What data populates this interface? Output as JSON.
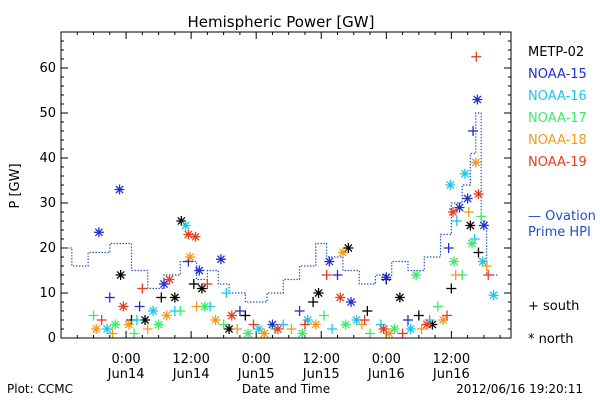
{
  "chart_data": {
    "type": "scatter",
    "title": "Hemispheric Power [GW]",
    "ylabel": "P [GW]",
    "xlabel": "Date and Time",
    "ylim": [
      0,
      68
    ],
    "yticks": [
      0,
      10,
      20,
      30,
      40,
      50,
      60
    ],
    "xlim": [
      -12,
      71
    ],
    "xticks": [
      {
        "x": 0,
        "label": "0:00",
        "date": "Jun14"
      },
      {
        "x": 12,
        "label": "12:00",
        "date": "Jun14"
      },
      {
        "x": 24,
        "label": "0:00",
        "date": "Jun15"
      },
      {
        "x": 36,
        "label": "12:00",
        "date": "Jun15"
      },
      {
        "x": 48,
        "label": "0:00",
        "date": "Jun16"
      },
      {
        "x": 60,
        "label": "12:00",
        "date": "Jun16"
      }
    ],
    "markers": {
      "south": "+",
      "north": "*"
    },
    "series": [
      {
        "name": "METP-02",
        "color": "#000000",
        "points": [
          {
            "x": -1,
            "y": 14,
            "m": "*"
          },
          {
            "x": 1,
            "y": 4,
            "m": "+"
          },
          {
            "x": 3.5,
            "y": 4,
            "m": "*"
          },
          {
            "x": 6.5,
            "y": 9,
            "m": "+"
          },
          {
            "x": 9,
            "y": 9,
            "m": "*"
          },
          {
            "x": 10.2,
            "y": 26,
            "m": "*"
          },
          {
            "x": 12.5,
            "y": 12,
            "m": "+"
          },
          {
            "x": 14,
            "y": 11,
            "m": "*"
          },
          {
            "x": 19,
            "y": 2,
            "m": "*"
          },
          {
            "x": 22,
            "y": 5,
            "m": "+"
          },
          {
            "x": 34.5,
            "y": 8,
            "m": "+"
          },
          {
            "x": 35.5,
            "y": 10,
            "m": "*"
          },
          {
            "x": 41,
            "y": 20,
            "m": "*"
          },
          {
            "x": 44.5,
            "y": 6,
            "m": "+"
          },
          {
            "x": 48,
            "y": 13,
            "m": "+"
          },
          {
            "x": 50.5,
            "y": 9,
            "m": "*"
          },
          {
            "x": 54,
            "y": 5,
            "m": "+"
          },
          {
            "x": 56.5,
            "y": 3,
            "m": "*"
          },
          {
            "x": 60,
            "y": 11,
            "m": "+"
          },
          {
            "x": 63.5,
            "y": 25,
            "m": "*"
          },
          {
            "x": 65,
            "y": 19,
            "m": "+"
          }
        ]
      },
      {
        "name": "NOAA-15",
        "color": "#1f2fd0",
        "points": [
          {
            "x": -5,
            "y": 23.5,
            "m": "*"
          },
          {
            "x": -3,
            "y": 9,
            "m": "+"
          },
          {
            "x": -1.2,
            "y": 33,
            "m": "*"
          },
          {
            "x": 2.5,
            "y": 7,
            "m": "+"
          },
          {
            "x": 7,
            "y": 12,
            "m": "*"
          },
          {
            "x": 11.5,
            "y": 17,
            "m": "+"
          },
          {
            "x": 13.5,
            "y": 15,
            "m": "*"
          },
          {
            "x": 17.5,
            "y": 17.5,
            "m": "*"
          },
          {
            "x": 21,
            "y": 6,
            "m": "+"
          },
          {
            "x": 27,
            "y": 3,
            "m": "*"
          },
          {
            "x": 32,
            "y": 6,
            "m": "+"
          },
          {
            "x": 37.5,
            "y": 17,
            "m": "*"
          },
          {
            "x": 39,
            "y": 14,
            "m": "+"
          },
          {
            "x": 41.5,
            "y": 8,
            "m": "*"
          },
          {
            "x": 48,
            "y": 13.5,
            "m": "*"
          },
          {
            "x": 52,
            "y": 4,
            "m": "+"
          },
          {
            "x": 59.5,
            "y": 20,
            "m": "+"
          },
          {
            "x": 61.5,
            "y": 29,
            "m": "*"
          },
          {
            "x": 63,
            "y": 31,
            "m": "*"
          },
          {
            "x": 64,
            "y": 46,
            "m": "+"
          },
          {
            "x": 64.8,
            "y": 53,
            "m": "*"
          },
          {
            "x": 66,
            "y": 25,
            "m": "*"
          }
        ]
      },
      {
        "name": "NOAA-16",
        "color": "#17c8e8",
        "points": [
          {
            "x": -3.5,
            "y": 2,
            "m": "*"
          },
          {
            "x": 2,
            "y": 4,
            "m": "+"
          },
          {
            "x": 5,
            "y": 6,
            "m": "*"
          },
          {
            "x": 9,
            "y": 6,
            "m": "+"
          },
          {
            "x": 11,
            "y": 25,
            "m": "*"
          },
          {
            "x": 15.5,
            "y": 7,
            "m": "+"
          },
          {
            "x": 18.5,
            "y": 10,
            "m": "+"
          },
          {
            "x": 24.5,
            "y": 2,
            "m": "*"
          },
          {
            "x": 29,
            "y": 3,
            "m": "+"
          },
          {
            "x": 33.5,
            "y": 4,
            "m": "*"
          },
          {
            "x": 38,
            "y": 2,
            "m": "+"
          },
          {
            "x": 42.5,
            "y": 4,
            "m": "*"
          },
          {
            "x": 47,
            "y": 3,
            "m": "+"
          },
          {
            "x": 52.5,
            "y": 2,
            "m": "*"
          },
          {
            "x": 56,
            "y": 4,
            "m": "+"
          },
          {
            "x": 59.8,
            "y": 34,
            "m": "*"
          },
          {
            "x": 61,
            "y": 26,
            "m": "+"
          },
          {
            "x": 62.5,
            "y": 36.5,
            "m": "*"
          },
          {
            "x": 64.3,
            "y": 22,
            "m": "+"
          },
          {
            "x": 65.8,
            "y": 17,
            "m": "*"
          },
          {
            "x": 67.8,
            "y": 9.5,
            "m": "*"
          }
        ]
      },
      {
        "name": "NOAA-17",
        "color": "#3ee86a",
        "points": [
          {
            "x": -6,
            "y": 5,
            "m": "+"
          },
          {
            "x": -2,
            "y": 3,
            "m": "*"
          },
          {
            "x": 1.5,
            "y": 1,
            "m": "+"
          },
          {
            "x": 6,
            "y": 3,
            "m": "*"
          },
          {
            "x": 10,
            "y": 6,
            "m": "+"
          },
          {
            "x": 14.5,
            "y": 7,
            "m": "*"
          },
          {
            "x": 18,
            "y": 3,
            "m": "+"
          },
          {
            "x": 22.5,
            "y": 1,
            "m": "*"
          },
          {
            "x": 27.5,
            "y": 2,
            "m": "+"
          },
          {
            "x": 32.5,
            "y": 1,
            "m": "*"
          },
          {
            "x": 36.5,
            "y": 5,
            "m": "+"
          },
          {
            "x": 40.5,
            "y": 3,
            "m": "*"
          },
          {
            "x": 45,
            "y": 1,
            "m": "+"
          },
          {
            "x": 49.5,
            "y": 2,
            "m": "*"
          },
          {
            "x": 53.5,
            "y": 14,
            "m": "*"
          },
          {
            "x": 57.5,
            "y": 7,
            "m": "+"
          },
          {
            "x": 60.5,
            "y": 17,
            "m": "*"
          },
          {
            "x": 62,
            "y": 14,
            "m": "+"
          },
          {
            "x": 63.8,
            "y": 21,
            "m": "*"
          },
          {
            "x": 65.5,
            "y": 27,
            "m": "+"
          }
        ]
      },
      {
        "name": "NOAA-18",
        "color": "#f09a1e",
        "points": [
          {
            "x": -5.5,
            "y": 2,
            "m": "*"
          },
          {
            "x": -2.5,
            "y": 1,
            "m": "+"
          },
          {
            "x": 0.5,
            "y": 3,
            "m": "*"
          },
          {
            "x": 4,
            "y": 2,
            "m": "+"
          },
          {
            "x": 7.5,
            "y": 5,
            "m": "*"
          },
          {
            "x": 11.8,
            "y": 18,
            "m": "*"
          },
          {
            "x": 13,
            "y": 7,
            "m": "+"
          },
          {
            "x": 16.5,
            "y": 4,
            "m": "*"
          },
          {
            "x": 20.5,
            "y": 2,
            "m": "+"
          },
          {
            "x": 25.5,
            "y": 1,
            "m": "*"
          },
          {
            "x": 30.5,
            "y": 2,
            "m": "+"
          },
          {
            "x": 35,
            "y": 3,
            "m": "*"
          },
          {
            "x": 40,
            "y": 19,
            "m": "*"
          },
          {
            "x": 43.5,
            "y": 3,
            "m": "+"
          },
          {
            "x": 48.5,
            "y": 1,
            "m": "*"
          },
          {
            "x": 54.5,
            "y": 2,
            "m": "+"
          },
          {
            "x": 58.5,
            "y": 4,
            "m": "*"
          },
          {
            "x": 60.8,
            "y": 14,
            "m": "+"
          },
          {
            "x": 63.2,
            "y": 28,
            "m": "+"
          },
          {
            "x": 64.5,
            "y": 39,
            "m": "*"
          },
          {
            "x": 66.5,
            "y": 16,
            "m": "+"
          }
        ]
      },
      {
        "name": "NOAA-19",
        "color": "#e83c1e",
        "points": [
          {
            "x": -4.5,
            "y": 4,
            "m": "+"
          },
          {
            "x": -0.5,
            "y": 7,
            "m": "*"
          },
          {
            "x": 3,
            "y": 11,
            "m": "+"
          },
          {
            "x": 8,
            "y": 13,
            "m": "*"
          },
          {
            "x": 11.5,
            "y": 23,
            "m": "*"
          },
          {
            "x": 12.8,
            "y": 22.5,
            "m": "*"
          },
          {
            "x": 15,
            "y": 12,
            "m": "+"
          },
          {
            "x": 19.5,
            "y": 5,
            "m": "*"
          },
          {
            "x": 23.5,
            "y": 3,
            "m": "+"
          },
          {
            "x": 28,
            "y": 2,
            "m": "*"
          },
          {
            "x": 33,
            "y": 3,
            "m": "+"
          },
          {
            "x": 37,
            "y": 14,
            "m": "+"
          },
          {
            "x": 39.5,
            "y": 9,
            "m": "*"
          },
          {
            "x": 44,
            "y": 4,
            "m": "+"
          },
          {
            "x": 47.5,
            "y": 2,
            "m": "*"
          },
          {
            "x": 51,
            "y": 1,
            "m": "+"
          },
          {
            "x": 55.5,
            "y": 3,
            "m": "*"
          },
          {
            "x": 59.2,
            "y": 5,
            "m": "+"
          },
          {
            "x": 60.3,
            "y": 28,
            "m": "*"
          },
          {
            "x": 64.6,
            "y": 62.5,
            "m": "+"
          },
          {
            "x": 65,
            "y": 32,
            "m": "*"
          },
          {
            "x": 66.8,
            "y": 14,
            "m": "+"
          }
        ]
      },
      {
        "name": "Ovation Prime HPI",
        "color": "#2050c8",
        "type": "step-dotted",
        "points": [
          {
            "x": -12,
            "y": 20
          },
          {
            "x": -10,
            "y": 16
          },
          {
            "x": -7,
            "y": 19
          },
          {
            "x": -3,
            "y": 21
          },
          {
            "x": 1,
            "y": 15
          },
          {
            "x": 4,
            "y": 11
          },
          {
            "x": 7,
            "y": 14
          },
          {
            "x": 10,
            "y": 17
          },
          {
            "x": 13,
            "y": 13
          },
          {
            "x": 15,
            "y": 15
          },
          {
            "x": 17,
            "y": 12
          },
          {
            "x": 19,
            "y": 10
          },
          {
            "x": 22,
            "y": 8
          },
          {
            "x": 26,
            "y": 10
          },
          {
            "x": 29,
            "y": 13
          },
          {
            "x": 32,
            "y": 16
          },
          {
            "x": 35,
            "y": 21
          },
          {
            "x": 37,
            "y": 18
          },
          {
            "x": 40,
            "y": 15
          },
          {
            "x": 43,
            "y": 12
          },
          {
            "x": 46,
            "y": 14
          },
          {
            "x": 49,
            "y": 17
          },
          {
            "x": 52,
            "y": 15
          },
          {
            "x": 55,
            "y": 18
          },
          {
            "x": 58,
            "y": 23
          },
          {
            "x": 60,
            "y": 30
          },
          {
            "x": 62,
            "y": 34
          },
          {
            "x": 63.5,
            "y": 41
          },
          {
            "x": 64.5,
            "y": 50
          },
          {
            "x": 65.5,
            "y": 26
          },
          {
            "x": 66.5,
            "y": 14
          },
          {
            "x": 67.5,
            "y": 14
          }
        ]
      }
    ],
    "legend": {
      "position": "right",
      "entries": [
        {
          "label": "METP-02",
          "color": "#000000"
        },
        {
          "label": "NOAA-15",
          "color": "#1f2fd0"
        },
        {
          "label": "NOAA-16",
          "color": "#17c8e8"
        },
        {
          "label": "NOAA-17",
          "color": "#3ee86a"
        },
        {
          "label": "NOAA-18",
          "color": "#f09a1e"
        },
        {
          "label": "NOAA-19",
          "color": "#e83c1e"
        }
      ],
      "hpi_label_line1": "— Ovation",
      "hpi_label_line2": "Prime HPI",
      "hpi_color": "#2050c8",
      "south_label": "+ south",
      "north_label": "* north"
    },
    "footer_left": "Plot: CCMC",
    "footer_right": "2012/06/16 19:20:11"
  }
}
